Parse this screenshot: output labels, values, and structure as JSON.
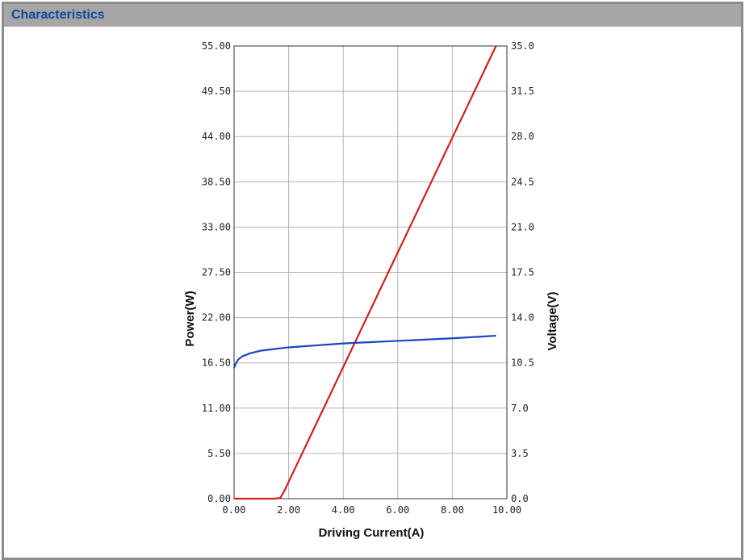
{
  "panel": {
    "title": "Characteristics"
  },
  "chart_data": {
    "type": "line",
    "title": "",
    "xlabel": "Driving Current(A)",
    "ylabel": "Power(W)",
    "y2label": "Voltage(V)",
    "xlim": [
      0,
      10
    ],
    "ylim": [
      0,
      55
    ],
    "y2lim": [
      0,
      35
    ],
    "grid": true,
    "xticks": [
      "0.00",
      "2.00",
      "4.00",
      "6.00",
      "8.00",
      "10.00"
    ],
    "yticks": [
      "0.00",
      "5.50",
      "11.00",
      "16.50",
      "22.00",
      "27.50",
      "33.00",
      "38.50",
      "44.00",
      "49.50",
      "55.00"
    ],
    "y2ticks": [
      "0.0",
      "3.5",
      "7.0",
      "10.5",
      "14.0",
      "17.5",
      "21.0",
      "24.5",
      "28.0",
      "31.5",
      "35.0"
    ],
    "series": [
      {
        "name": "Power",
        "axis": "left",
        "color": "#d21f1f",
        "x": [
          0,
          1.5,
          1.7,
          1.85,
          9.6
        ],
        "y": [
          0,
          0,
          0.1,
          1.0,
          55
        ]
      },
      {
        "name": "Voltage",
        "axis": "right",
        "color": "#1a45c0",
        "x": [
          0,
          0.05,
          0.15,
          0.3,
          0.6,
          1.0,
          2.0,
          4.0,
          6.0,
          8.0,
          9.6
        ],
        "y": [
          10.1,
          10.4,
          10.75,
          11.0,
          11.25,
          11.45,
          11.7,
          12.0,
          12.2,
          12.4,
          12.6
        ]
      }
    ]
  }
}
